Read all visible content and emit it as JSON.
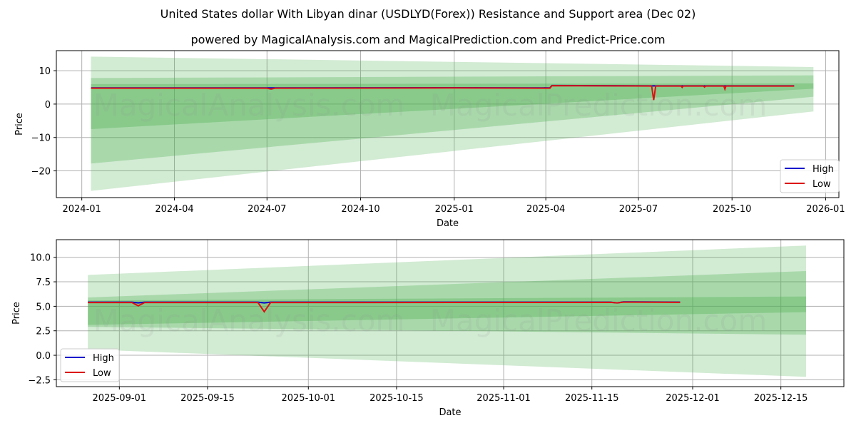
{
  "header": {
    "title": "United States dollar With Libyan dinar (USDLYD(Forex)) Resistance and Support area (Dec 02)",
    "subtitle": "powered by MagicalAnalysis.com and MagicalPrediction.com and Predict-Price.com"
  },
  "watermarks": [
    "MagicalAnalysis.com",
    "MagicalPrediction.com"
  ],
  "colors": {
    "high": "#0000cc",
    "low": "#dd1111",
    "band": "#4caf50",
    "grid": "#b0b0b0"
  },
  "chart_data": [
    {
      "type": "line",
      "title": "",
      "xlabel": "Date",
      "ylabel": "Price",
      "ylim": [
        -28,
        16
      ],
      "grid": true,
      "legend_position": "lower right",
      "legend": [
        "High",
        "Low"
      ],
      "x_tick_labels": [
        "2024-01",
        "2024-04",
        "2024-07",
        "2024-10",
        "2025-01",
        "2025-04",
        "2025-07",
        "2025-10",
        "2026-01"
      ],
      "y_ticks": [
        10,
        0,
        -10,
        -20
      ],
      "y_tick_labels": [
        "10",
        "0",
        "−10",
        "−20"
      ],
      "bands": [
        {
          "name": "outer",
          "start": {
            "x": "2024-01-10",
            "upper": 14.2,
            "lower": -26.0
          },
          "end": {
            "x": "2025-12-20",
            "upper": 11.1,
            "lower": -2.2
          },
          "opacity": 0.25
        },
        {
          "name": "middle",
          "start": {
            "x": "2024-01-10",
            "upper": 7.8,
            "lower": -17.8
          },
          "end": {
            "x": "2025-12-20",
            "upper": 8.6,
            "lower": 2.2
          },
          "opacity": 0.3
        },
        {
          "name": "inner",
          "start": {
            "x": "2024-01-10",
            "upper": 6.0,
            "lower": -7.5
          },
          "end": {
            "x": "2025-12-20",
            "upper": 6.2,
            "lower": 4.6
          },
          "opacity": 0.35
        }
      ],
      "series": [
        {
          "name": "High",
          "points": [
            [
              "2024-01-10",
              4.85
            ],
            [
              "2024-07-01",
              4.85
            ],
            [
              "2025-01-01",
              4.9
            ],
            [
              "2025-04-05",
              4.85
            ],
            [
              "2025-04-07",
              5.55
            ],
            [
              "2025-07-15",
              5.45
            ],
            [
              "2025-12-01",
              5.45
            ]
          ]
        },
        {
          "name": "Low",
          "points": [
            [
              "2024-01-10",
              4.75
            ],
            [
              "2024-07-01",
              4.75
            ],
            [
              "2024-07-05",
              4.5
            ],
            [
              "2024-07-09",
              4.75
            ],
            [
              "2025-01-01",
              4.85
            ],
            [
              "2025-04-05",
              4.75
            ],
            [
              "2025-04-07",
              5.5
            ],
            [
              "2025-07-14",
              5.4
            ],
            [
              "2025-07-16",
              1.2
            ],
            [
              "2025-07-18",
              5.4
            ],
            [
              "2025-08-12",
              5.4
            ],
            [
              "2025-08-13",
              5.0
            ],
            [
              "2025-08-14",
              5.4
            ],
            [
              "2025-09-03",
              5.4
            ],
            [
              "2025-09-04",
              5.1
            ],
            [
              "2025-09-05",
              5.4
            ],
            [
              "2025-09-23",
              5.4
            ],
            [
              "2025-09-24",
              4.5
            ],
            [
              "2025-09-25",
              5.4
            ],
            [
              "2025-12-01",
              5.4
            ]
          ]
        }
      ]
    },
    {
      "type": "line",
      "title": "",
      "xlabel": "Date",
      "ylabel": "Price",
      "ylim": [
        -3.2,
        11.8
      ],
      "grid": true,
      "legend_position": "lower left",
      "legend": [
        "High",
        "Low"
      ],
      "x_tick_labels": [
        "2025-09-01",
        "2025-09-15",
        "2025-10-01",
        "2025-10-15",
        "2025-11-01",
        "2025-11-15",
        "2025-12-01",
        "2025-12-15"
      ],
      "y_ticks": [
        10.0,
        7.5,
        5.0,
        2.5,
        0.0,
        -2.5
      ],
      "y_tick_labels": [
        "10.0",
        "7.5",
        "5.0",
        "2.5",
        "0.0",
        "−2.5"
      ],
      "bands": [
        {
          "name": "outer",
          "start": {
            "x": "2025-08-27",
            "upper": 8.2,
            "lower": 0.6
          },
          "end": {
            "x": "2025-12-19",
            "upper": 11.2,
            "lower": -2.2
          },
          "opacity": 0.25
        },
        {
          "name": "middle",
          "start": {
            "x": "2025-08-27",
            "upper": 5.9,
            "lower": 2.9
          },
          "end": {
            "x": "2025-12-19",
            "upper": 8.6,
            "lower": 2.1
          },
          "opacity": 0.3
        },
        {
          "name": "inner",
          "start": {
            "x": "2025-08-27",
            "upper": 5.6,
            "lower": 3.1
          },
          "end": {
            "x": "2025-12-19",
            "upper": 6.0,
            "lower": 4.4
          },
          "opacity": 0.35
        }
      ],
      "series": [
        {
          "name": "High",
          "points": [
            [
              "2025-08-27",
              5.42
            ],
            [
              "2025-09-03",
              5.42
            ],
            [
              "2025-09-04",
              5.35
            ],
            [
              "2025-09-05",
              5.42
            ],
            [
              "2025-09-23",
              5.42
            ],
            [
              "2025-09-24",
              5.35
            ],
            [
              "2025-09-25",
              5.42
            ],
            [
              "2025-11-18",
              5.42
            ],
            [
              "2025-11-19",
              5.35
            ],
            [
              "2025-11-20",
              5.45
            ],
            [
              "2025-11-29",
              5.42
            ]
          ]
        },
        {
          "name": "Low",
          "points": [
            [
              "2025-08-27",
              5.38
            ],
            [
              "2025-09-03",
              5.38
            ],
            [
              "2025-09-04",
              5.05
            ],
            [
              "2025-09-05",
              5.38
            ],
            [
              "2025-09-23",
              5.38
            ],
            [
              "2025-09-24",
              4.45
            ],
            [
              "2025-09-25",
              5.38
            ],
            [
              "2025-11-18",
              5.4
            ],
            [
              "2025-11-19",
              5.35
            ],
            [
              "2025-11-20",
              5.42
            ],
            [
              "2025-11-29",
              5.4
            ]
          ]
        }
      ]
    }
  ]
}
